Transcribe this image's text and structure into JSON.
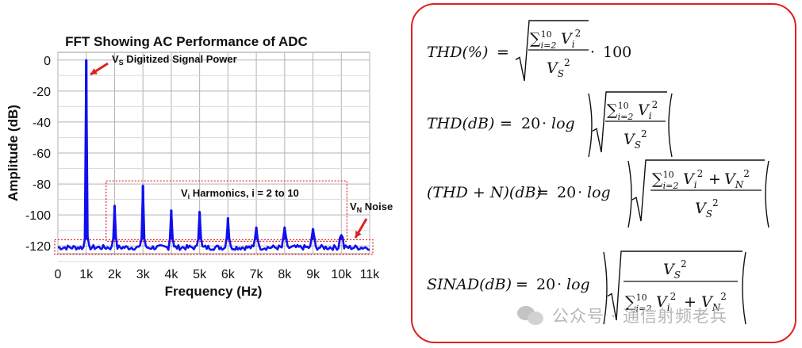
{
  "chart_data": {
    "type": "line",
    "title": "FFT Showing AC Performance of ADC",
    "xlabel": "Frequency (Hz)",
    "ylabel": "Amplitude (dB)",
    "xlim": [
      0,
      11000
    ],
    "ylim": [
      -125,
      5
    ],
    "x_ticks": [
      {
        "value": 0,
        "label": "0"
      },
      {
        "value": 1000,
        "label": "1k"
      },
      {
        "value": 2000,
        "label": "2k"
      },
      {
        "value": 3000,
        "label": "3k"
      },
      {
        "value": 4000,
        "label": "4k"
      },
      {
        "value": 5000,
        "label": "5k"
      },
      {
        "value": 6000,
        "label": "6k"
      },
      {
        "value": 7000,
        "label": "7k"
      },
      {
        "value": 8000,
        "label": "8k"
      },
      {
        "value": 9000,
        "label": "9k"
      },
      {
        "value": 10000,
        "label": "10k"
      },
      {
        "value": 11000,
        "label": "11k"
      }
    ],
    "y_ticks": [
      {
        "value": 0,
        "label": "0"
      },
      {
        "value": -20,
        "label": "-20"
      },
      {
        "value": -40,
        "label": "-40"
      },
      {
        "value": -60,
        "label": "-60"
      },
      {
        "value": -80,
        "label": "-80"
      },
      {
        "value": -100,
        "label": "-100"
      },
      {
        "value": -120,
        "label": "-120"
      }
    ],
    "grid": true,
    "line_color": "#1010ee",
    "noise_floor": -121,
    "peaks": [
      {
        "freq": 1000,
        "amplitude": 0
      },
      {
        "freq": 2000,
        "amplitude": -94
      },
      {
        "freq": 3000,
        "amplitude": -81
      },
      {
        "freq": 4000,
        "amplitude": -97
      },
      {
        "freq": 5000,
        "amplitude": -98
      },
      {
        "freq": 6000,
        "amplitude": -102
      },
      {
        "freq": 7000,
        "amplitude": -108
      },
      {
        "freq": 8000,
        "amplitude": -108
      },
      {
        "freq": 9000,
        "amplitude": -109
      },
      {
        "freq": 10000,
        "amplitude": -113
      }
    ],
    "annotations": {
      "signal": {
        "main": "V",
        "sub": "S",
        "rest": " Digitized Signal Power"
      },
      "harmonics": {
        "main": "V",
        "sub": "i",
        "rest": " Harmonics, i = 2 to 10"
      },
      "noise": {
        "main": "V",
        "sub": "N",
        "rest": " Noise"
      }
    },
    "highlight_color": "#e02020"
  },
  "formulas": [
    {
      "lhs": "THD(%)",
      "form": "thd_percent",
      "tail": "100"
    },
    {
      "lhs": "THD(dB)",
      "form": "thd_db",
      "func": "log"
    },
    {
      "lhs": "(THD + N)(dB)",
      "form": "thdn_db",
      "func": "log"
    },
    {
      "lhs": "SINAD(dB)",
      "form": "sinad_db",
      "func": "log"
    }
  ],
  "formula_symbols": {
    "sum": "∑",
    "sum_lower": "i=2",
    "sum_upper": "10",
    "var_i": "V",
    "sub_i": "i",
    "var_s": "V",
    "sub_s": "S",
    "var_n": "V",
    "sub_n": "N",
    "power": "2",
    "equals": "=",
    "coef": "20",
    "dot": "·",
    "plus": "+"
  },
  "frame_color": "#e02020",
  "watermark": {
    "icon": "wechat-icon",
    "text": "公众号 · 通信射频老兵"
  }
}
